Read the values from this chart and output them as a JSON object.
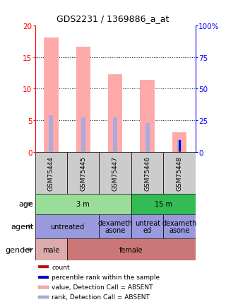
{
  "title": "GDS2231 / 1369886_a_at",
  "samples": [
    "GSM75444",
    "GSM75445",
    "GSM75447",
    "GSM75446",
    "GSM75448"
  ],
  "bar_values": [
    18.1,
    16.7,
    12.3,
    11.4,
    3.1
  ],
  "rank_values": [
    5.8,
    5.5,
    5.5,
    4.6,
    2.0
  ],
  "bar_color": "#ffaaaa",
  "rank_color": "#aaaadd",
  "count_bar": {
    "sample": 4,
    "value": 0.25,
    "color": "#cc0000"
  },
  "pct_bar": {
    "sample": 4,
    "value": 1.85,
    "color": "#0000cc"
  },
  "ylim_left": [
    0,
    20
  ],
  "ylim_right": [
    0,
    100
  ],
  "yticks_left": [
    0,
    5,
    10,
    15,
    20
  ],
  "ytick_labels_right": [
    "0",
    "25",
    "50",
    "75",
    "100%"
  ],
  "yticks_right": [
    0,
    25,
    50,
    75,
    100
  ],
  "age_groups": [
    {
      "label": "3 m",
      "span": [
        0,
        3
      ],
      "color": "#99dd99"
    },
    {
      "label": "15 m",
      "span": [
        3,
        5
      ],
      "color": "#33bb55"
    }
  ],
  "agent_groups": [
    {
      "label": "untreated",
      "span": [
        0,
        2
      ],
      "color": "#9999dd"
    },
    {
      "label": "dexameth\nasone",
      "span": [
        2,
        3
      ],
      "color": "#9999dd"
    },
    {
      "label": "untreat\ned",
      "span": [
        3,
        4
      ],
      "color": "#9999dd"
    },
    {
      "label": "dexameth\nasone",
      "span": [
        4,
        5
      ],
      "color": "#9999dd"
    }
  ],
  "gender_groups": [
    {
      "label": "male",
      "span": [
        0,
        1
      ],
      "color": "#ddaaaa"
    },
    {
      "label": "female",
      "span": [
        1,
        5
      ],
      "color": "#cc7777"
    }
  ],
  "legend_items": [
    {
      "color": "#cc0000",
      "label": "count"
    },
    {
      "color": "#0000cc",
      "label": "percentile rank within the sample"
    },
    {
      "color": "#ffaaaa",
      "label": "value, Detection Call = ABSENT"
    },
    {
      "color": "#aaaadd",
      "label": "rank, Detection Call = ABSENT"
    }
  ]
}
